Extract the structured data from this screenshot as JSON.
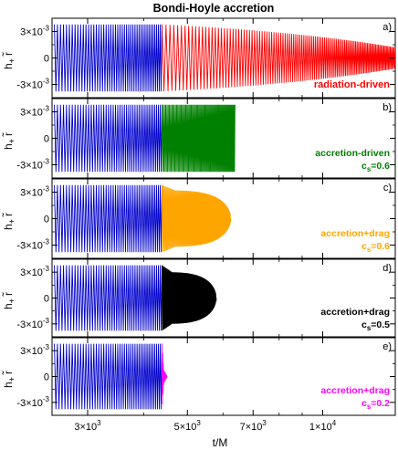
{
  "figure": {
    "title": "Bondi-Hoyle accretion",
    "xlabel": "t/M",
    "ylabel_main": "h",
    "ylabel_sub": "+",
    "ylabel_tilde_r": "r̃"
  },
  "chart_data": {
    "type": "line",
    "title": "Bondi-Hoyle accretion",
    "xlabel": "t/M",
    "ylabel": "h+ r̃",
    "xscale": "log",
    "xlim": [
      2500,
      14500
    ],
    "ylim": [
      -0.0045,
      0.0045
    ],
    "xticks": [
      3000,
      5000,
      7000,
      10000
    ],
    "xtick_labels": [
      {
        "mant": "3×10",
        "exp": "3"
      },
      {
        "mant": "5×10",
        "exp": "3"
      },
      {
        "mant": "7×10",
        "exp": "3"
      },
      {
        "mant": "1×10",
        "exp": "4"
      }
    ],
    "yticks": [
      -0.003,
      0,
      0.003
    ],
    "ytick_labels": [
      {
        "mant": "-3×10",
        "exp": "-3"
      },
      {
        "mant": "0",
        "exp": ""
      },
      {
        "mant": "3×10",
        "exp": "-3"
      }
    ],
    "inspiral": {
      "color": "#0000cc",
      "t_start": 2530,
      "t_end": 4390,
      "amplitude": 0.0038,
      "cycles": 46
    },
    "panels": [
      {
        "label": "a)",
        "annotation": [
          "radiation-driven"
        ],
        "color": "#ff0000",
        "series": [
          {
            "name": "radiation-driven",
            "t_start": 4390,
            "t_end": 14500,
            "amp_start": 0.0038,
            "amp_peak": 0.0038,
            "amp_end": 0.0012,
            "shape": "decay",
            "cycles": 110
          }
        ]
      },
      {
        "label": "b)",
        "annotation": [
          "accretion-driven",
          "c",
          "s",
          "=0.6"
        ],
        "color": "#008000",
        "series": [
          {
            "name": "accretion-driven",
            "t_start": 4390,
            "t_end": 6380,
            "amp_start": 0.0038,
            "amp_peak": 0.0038,
            "amp_end": 0.0038,
            "shape": "flat",
            "cycles": 70
          }
        ]
      },
      {
        "label": "c)",
        "annotation": [
          "accretion+drag",
          "c",
          "s",
          "=0.6"
        ],
        "color": "#ffa500",
        "series": [
          {
            "name": "accretion+drag",
            "t_start": 4390,
            "t_end": 6250,
            "amp_start": 0.0038,
            "amp_peak": 0.0032,
            "amp_end": 0.0,
            "shape": "taper",
            "cycles": 80
          }
        ]
      },
      {
        "label": "d)",
        "annotation": [
          "accretion+drag",
          "c",
          "s",
          "=0.5"
        ],
        "color": "#000000",
        "series": [
          {
            "name": "accretion+drag",
            "t_start": 4390,
            "t_end": 5800,
            "amp_start": 0.0038,
            "amp_peak": 0.003,
            "amp_end": 0.0,
            "shape": "taper",
            "cycles": 70
          }
        ]
      },
      {
        "label": "e)",
        "annotation": [
          "accretion+drag",
          "c",
          "s",
          "=0.2"
        ],
        "color": "#ff00ff",
        "series": [
          {
            "name": "accretion+drag",
            "t_start": 4390,
            "t_end": 4510,
            "amp_start": 0.0038,
            "amp_peak": 0.0012,
            "amp_end": 0.0,
            "shape": "chirp",
            "cycles": 8
          }
        ]
      }
    ]
  }
}
